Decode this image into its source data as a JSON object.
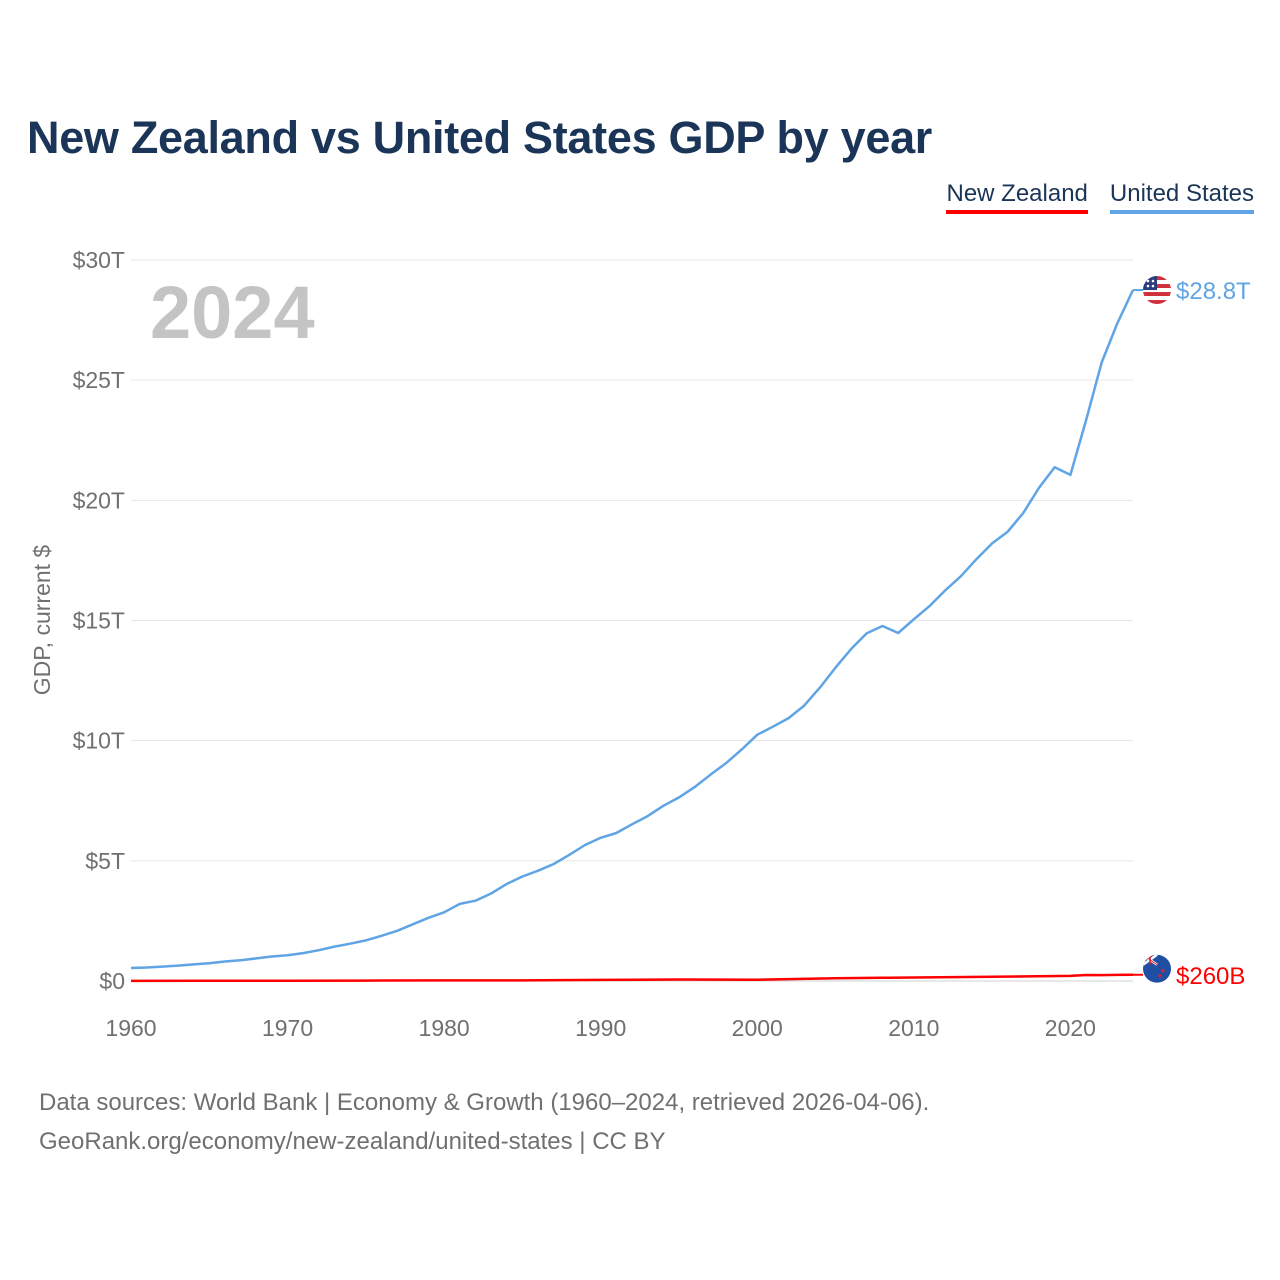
{
  "title": "New Zealand vs United States GDP by year",
  "legend": [
    {
      "label": "New Zealand",
      "color": "#ff0000"
    },
    {
      "label": "United States",
      "color": "#5fa4e4"
    }
  ],
  "footer": {
    "line1": "Data sources: World Bank | Economy & Growth (1960–2024, retrieved 2026-04-06).",
    "line2": "GeoRank.org/economy/new-zealand/united-states | CC BY"
  },
  "chart_data": {
    "type": "line",
    "title": "New Zealand vs United States GDP by year",
    "xlabel": "",
    "ylabel": "GDP, current $",
    "year_label": "2024",
    "xlim": [
      1960,
      2024
    ],
    "ylim": [
      0,
      30
    ],
    "y_unit": "trillions of current US$",
    "grid": true,
    "legend_position": "top-right",
    "x_ticks": [
      1960,
      1970,
      1980,
      1990,
      2000,
      2010,
      2020
    ],
    "y_ticks": [
      {
        "value": 0,
        "label": "$0"
      },
      {
        "value": 5,
        "label": "$5T"
      },
      {
        "value": 10,
        "label": "$10T"
      },
      {
        "value": 15,
        "label": "$15T"
      },
      {
        "value": 20,
        "label": "$20T"
      },
      {
        "value": 25,
        "label": "$25T"
      },
      {
        "value": 30,
        "label": "$30T"
      }
    ],
    "series": [
      {
        "name": "United States",
        "color": "#5fa4e4",
        "end_label": "$28.8T",
        "flag_icon": "us-flag-icon",
        "x": [
          1960,
          1961,
          1962,
          1963,
          1964,
          1965,
          1966,
          1967,
          1968,
          1969,
          1970,
          1971,
          1972,
          1973,
          1974,
          1975,
          1976,
          1977,
          1978,
          1979,
          1980,
          1981,
          1982,
          1983,
          1984,
          1985,
          1986,
          1987,
          1988,
          1989,
          1990,
          1991,
          1992,
          1993,
          1994,
          1995,
          1996,
          1997,
          1998,
          1999,
          2000,
          2001,
          2002,
          2003,
          2004,
          2005,
          2006,
          2007,
          2008,
          2009,
          2010,
          2011,
          2012,
          2013,
          2014,
          2015,
          2016,
          2017,
          2018,
          2019,
          2020,
          2021,
          2022,
          2023,
          2024
        ],
        "values": [
          0.54,
          0.56,
          0.6,
          0.64,
          0.69,
          0.74,
          0.81,
          0.86,
          0.94,
          1.02,
          1.07,
          1.16,
          1.28,
          1.43,
          1.55,
          1.69,
          1.88,
          2.09,
          2.36,
          2.63,
          2.86,
          3.21,
          3.34,
          3.64,
          4.04,
          4.35,
          4.59,
          4.87,
          5.25,
          5.66,
          5.96,
          6.16,
          6.52,
          6.86,
          7.29,
          7.64,
          8.07,
          8.58,
          9.06,
          9.63,
          10.25,
          10.58,
          10.94,
          11.46,
          12.21,
          13.04,
          13.82,
          14.47,
          14.77,
          14.48,
          15.05,
          15.6,
          16.25,
          16.84,
          17.55,
          18.21,
          18.7,
          19.48,
          20.53,
          21.38,
          21.06,
          23.32,
          25.74,
          27.36,
          28.75
        ]
      },
      {
        "name": "New Zealand",
        "color": "#ff0000",
        "end_label": "$260B",
        "flag_icon": "nz-flag-icon",
        "x": [
          1960,
          1965,
          1970,
          1975,
          1980,
          1985,
          1990,
          1995,
          2000,
          2005,
          2008,
          2010,
          2015,
          2020,
          2021,
          2022,
          2023,
          2024
        ],
        "values": [
          0.006,
          0.007,
          0.007,
          0.016,
          0.023,
          0.024,
          0.045,
          0.062,
          0.053,
          0.114,
          0.133,
          0.146,
          0.177,
          0.212,
          0.25,
          0.247,
          0.253,
          0.26
        ]
      }
    ]
  }
}
